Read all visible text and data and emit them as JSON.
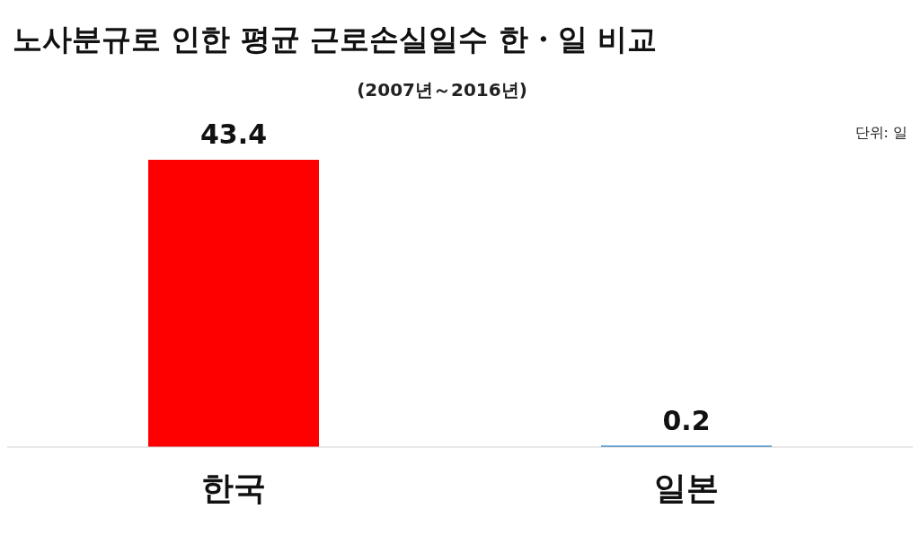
{
  "chart_data": {
    "type": "bar",
    "title": "노사분규로 인한 평균 근로손실일수 한・일 비교",
    "subtitle": "(2007년～2016년)",
    "annotations": [
      "단위: 일"
    ],
    "categories": [
      "한국",
      "일본"
    ],
    "values": [
      43.4,
      0.2
    ],
    "colors": [
      "#ff0000",
      "#0070c0"
    ],
    "data_labels": true
  }
}
